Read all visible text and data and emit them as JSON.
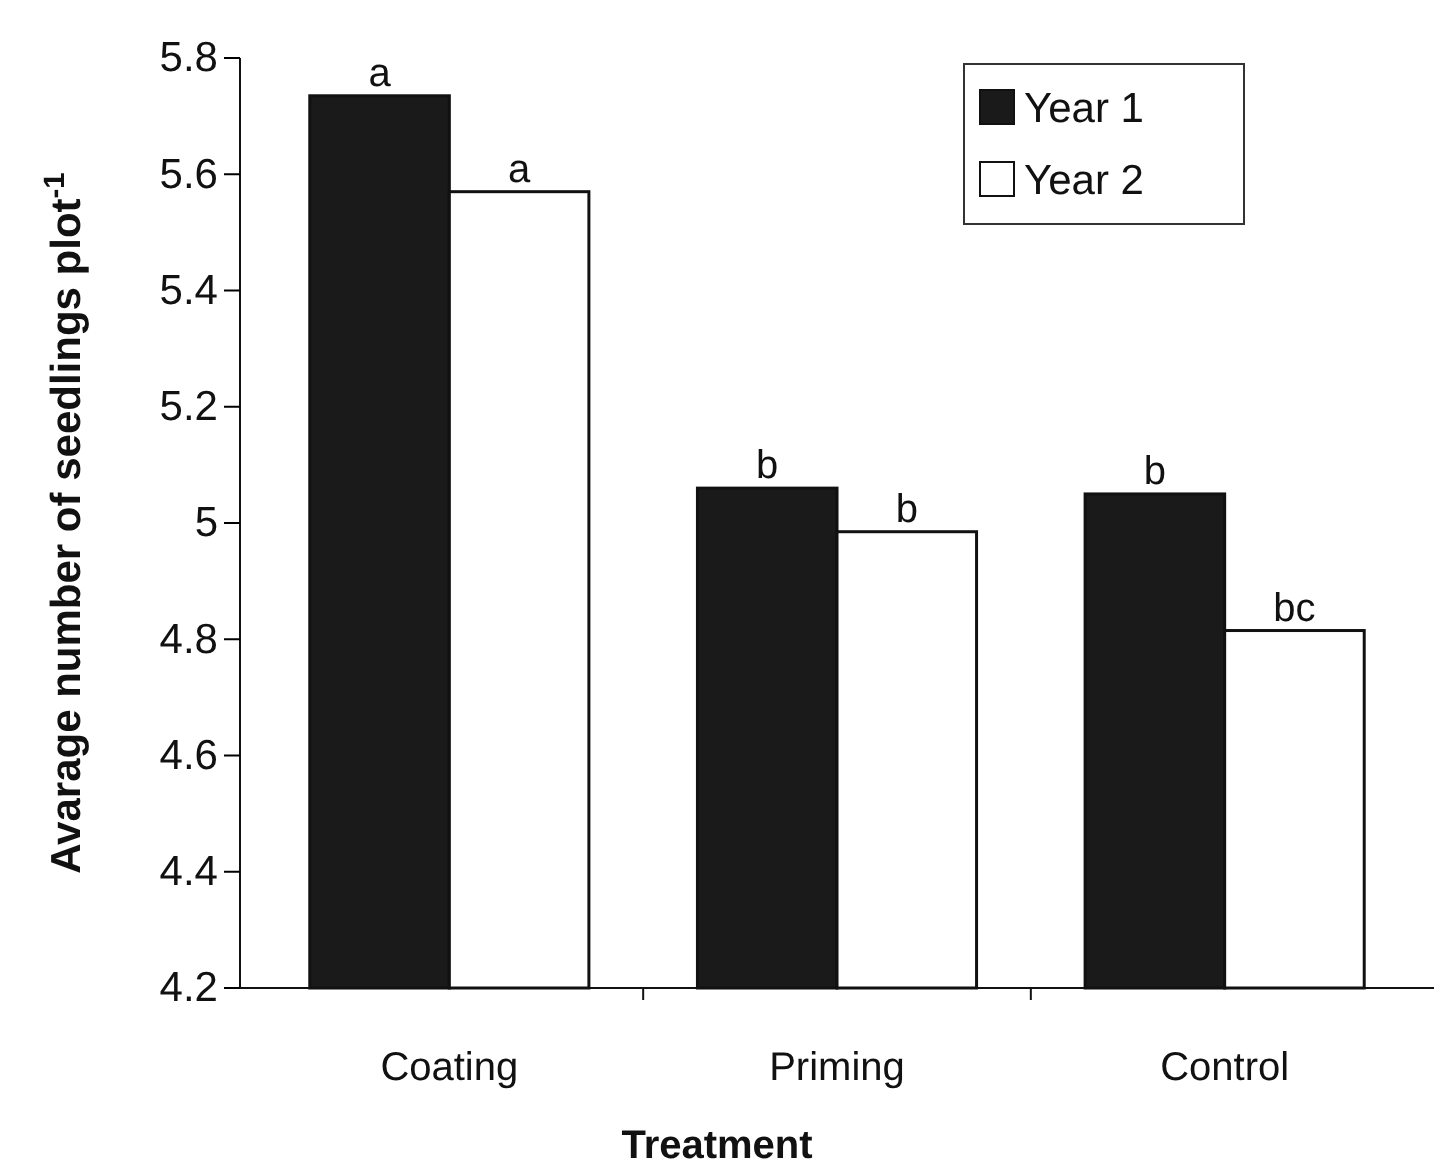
{
  "chart_data": {
    "type": "bar",
    "xlabel": "Treatment",
    "ylabel": "Avarage number of seedlings plot$^{-1}$",
    "categories": [
      "Coating",
      "Priming",
      "Control"
    ],
    "series": [
      {
        "name": "Year 1",
        "color": "#1a1a1a",
        "values": [
          5.735,
          5.06,
          5.05
        ]
      },
      {
        "name": "Year 2",
        "color": "#ffffff",
        "values": [
          5.57,
          4.985,
          4.815
        ]
      }
    ],
    "ylim": [
      4.2,
      5.8
    ],
    "yticks": [
      4.2,
      4.4,
      4.6,
      4.8,
      5,
      5.2,
      5.4,
      5.6,
      5.8
    ],
    "value_labels": [
      [
        "a",
        "b",
        "b"
      ],
      [
        "a",
        "b",
        "bc"
      ]
    ],
    "legend": "top right",
    "grid": false
  }
}
